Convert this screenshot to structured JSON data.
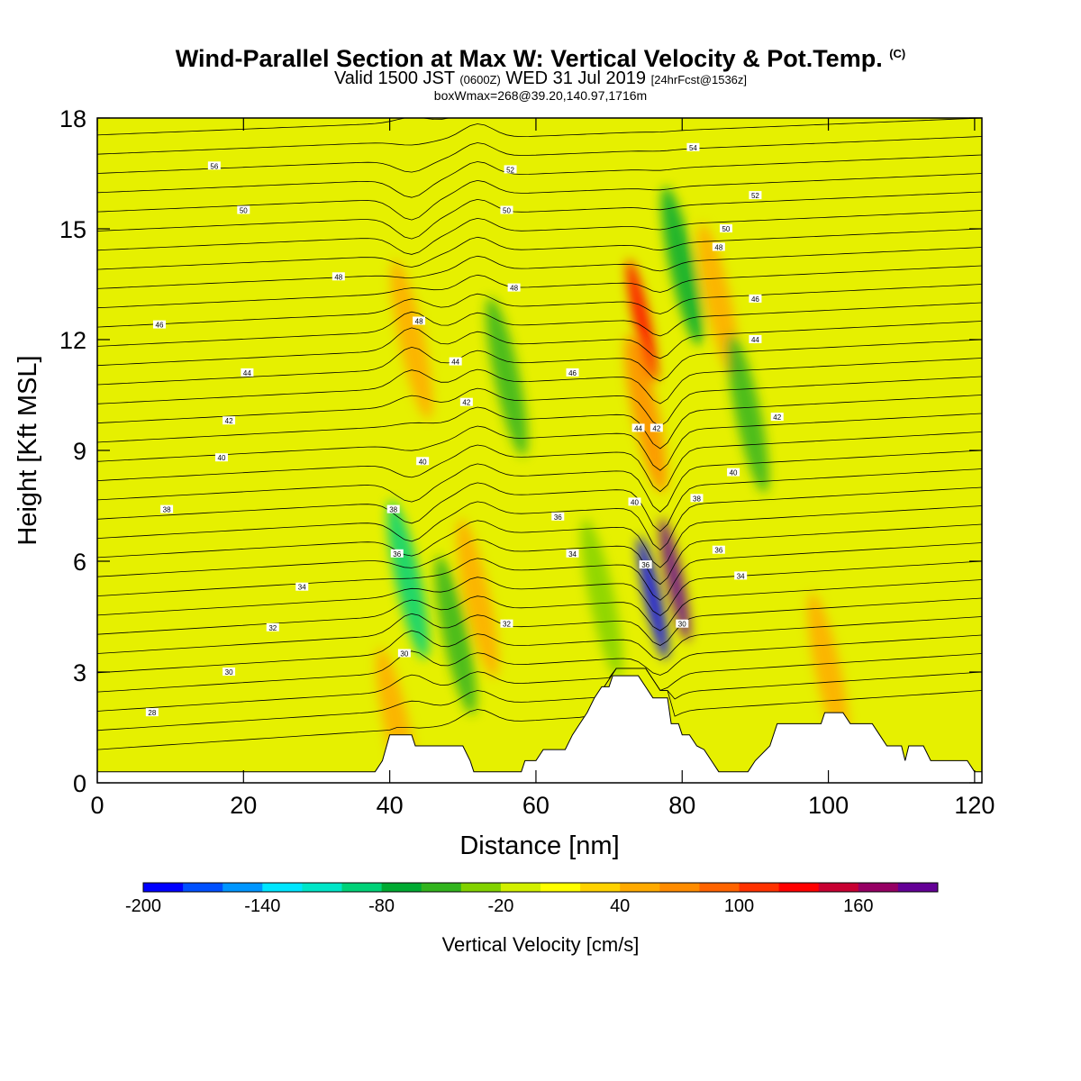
{
  "header": {
    "title": "Wind-Parallel Section at Max W: Vertical Velocity & Pot.Temp.",
    "title_tag": "(C)",
    "subtitle_pre": "Valid 1500 JST",
    "subtitle_utc": "(0600Z)",
    "subtitle_date": "WED 31 Jul 2019",
    "subtitle_fcst": "[24hrFcst@1536z]",
    "subtitle2": "boxWmax=268@39.20,140.97,1716m"
  },
  "chart_data": {
    "type": "contour",
    "xlabel": "Distance [nm]",
    "ylabel": "Height [Kft MSL]",
    "xlim": [
      0,
      121
    ],
    "ylim": [
      0,
      18
    ],
    "xticks": [
      0,
      20,
      40,
      60,
      80,
      100,
      120
    ],
    "yticks": [
      0,
      3,
      6,
      9,
      12,
      15,
      18
    ],
    "terrain_kft": [
      [
        0,
        0.3
      ],
      [
        38,
        0.3
      ],
      [
        39,
        0.6
      ],
      [
        40,
        1.3
      ],
      [
        43,
        1.3
      ],
      [
        43.5,
        1.0
      ],
      [
        47,
        1.0
      ],
      [
        50,
        1.0
      ],
      [
        51,
        0.6
      ],
      [
        51.5,
        0.3
      ],
      [
        58,
        0.3
      ],
      [
        58.5,
        0.6
      ],
      [
        60,
        0.6
      ],
      [
        61,
        0.9
      ],
      [
        64,
        0.9
      ],
      [
        65,
        1.3
      ],
      [
        66,
        1.6
      ],
      [
        67,
        1.9
      ],
      [
        68,
        2.3
      ],
      [
        69,
        2.6
      ],
      [
        70,
        2.6
      ],
      [
        70.5,
        2.9
      ],
      [
        74,
        2.9
      ],
      [
        75,
        2.6
      ],
      [
        76,
        2.3
      ],
      [
        78,
        2.3
      ],
      [
        78.5,
        1.6
      ],
      [
        79.5,
        1.6
      ],
      [
        80,
        1.3
      ],
      [
        81,
        1.3
      ],
      [
        82,
        1.0
      ],
      [
        83,
        0.9
      ],
      [
        84,
        0.6
      ],
      [
        85,
        0.3
      ],
      [
        89,
        0.3
      ],
      [
        90,
        0.6
      ],
      [
        92,
        1.0
      ],
      [
        93,
        1.6
      ],
      [
        99,
        1.6
      ],
      [
        99.5,
        1.9
      ],
      [
        102,
        1.9
      ],
      [
        103,
        1.6
      ],
      [
        106,
        1.6
      ],
      [
        107,
        1.3
      ],
      [
        108,
        1.0
      ],
      [
        110,
        1.0
      ],
      [
        110.5,
        0.6
      ],
      [
        111,
        1.0
      ],
      [
        113,
        1.0
      ],
      [
        114,
        0.6
      ],
      [
        119,
        0.6
      ],
      [
        120,
        0.3
      ],
      [
        121,
        0.3
      ]
    ],
    "w_features": [
      {
        "x": 41,
        "y": 1.5,
        "w": 50
      },
      {
        "x": 42.5,
        "y": 5.5,
        "w": -90
      },
      {
        "x": 43,
        "y": 12,
        "w": 40
      },
      {
        "x": 49,
        "y": 4,
        "w": -60
      },
      {
        "x": 52,
        "y": 5,
        "w": 40
      },
      {
        "x": 56,
        "y": 11,
        "w": -60
      },
      {
        "x": 69,
        "y": 5,
        "w": -40
      },
      {
        "x": 75,
        "y": 10,
        "w": 60
      },
      {
        "x": 74.5,
        "y": 12.5,
        "w": 120
      },
      {
        "x": 76,
        "y": 5,
        "w": -200
      },
      {
        "x": 79,
        "y": 5.5,
        "w": 180
      },
      {
        "x": 80,
        "y": 14,
        "w": -80
      },
      {
        "x": 85,
        "y": 13,
        "w": 40
      },
      {
        "x": 89,
        "y": 10,
        "w": -60
      },
      {
        "x": 100,
        "y": 3,
        "w": 40
      }
    ],
    "contour_labels": [
      {
        "x": 16,
        "y": 16.7,
        "t": "56"
      },
      {
        "x": 20,
        "y": 15.5,
        "t": "50"
      },
      {
        "x": 33,
        "y": 13.7,
        "t": "48"
      },
      {
        "x": 8.5,
        "y": 12.4,
        "t": "46"
      },
      {
        "x": 20.5,
        "y": 11.1,
        "t": "44"
      },
      {
        "x": 18,
        "y": 9.8,
        "t": "42"
      },
      {
        "x": 17,
        "y": 8.8,
        "t": "40"
      },
      {
        "x": 9.5,
        "y": 7.4,
        "t": "38"
      },
      {
        "x": 28,
        "y": 5.3,
        "t": "34"
      },
      {
        "x": 24,
        "y": 4.2,
        "t": "32"
      },
      {
        "x": 18,
        "y": 3.0,
        "t": "30"
      },
      {
        "x": 7.5,
        "y": 1.9,
        "t": "28"
      },
      {
        "x": 56.5,
        "y": 16.6,
        "t": "52"
      },
      {
        "x": 56,
        "y": 15.5,
        "t": "50"
      },
      {
        "x": 57,
        "y": 13.4,
        "t": "48"
      },
      {
        "x": 65,
        "y": 11.1,
        "t": "46"
      },
      {
        "x": 49,
        "y": 11.4,
        "t": "44"
      },
      {
        "x": 50.5,
        "y": 10.3,
        "t": "42"
      },
      {
        "x": 44,
        "y": 12.5,
        "t": "48"
      },
      {
        "x": 44.5,
        "y": 8.7,
        "t": "40"
      },
      {
        "x": 40.5,
        "y": 7.4,
        "t": "38"
      },
      {
        "x": 41,
        "y": 6.2,
        "t": "36"
      },
      {
        "x": 42,
        "y": 3.5,
        "t": "30"
      },
      {
        "x": 63,
        "y": 7.2,
        "t": "36"
      },
      {
        "x": 65,
        "y": 6.2,
        "t": "34"
      },
      {
        "x": 56,
        "y": 4.3,
        "t": "32"
      },
      {
        "x": 81.5,
        "y": 17.2,
        "t": "54"
      },
      {
        "x": 90,
        "y": 15.9,
        "t": "52"
      },
      {
        "x": 86,
        "y": 15.0,
        "t": "50"
      },
      {
        "x": 85,
        "y": 14.5,
        "t": "48"
      },
      {
        "x": 90,
        "y": 13.1,
        "t": "46"
      },
      {
        "x": 90,
        "y": 12.0,
        "t": "44"
      },
      {
        "x": 93,
        "y": 9.9,
        "t": "42"
      },
      {
        "x": 87,
        "y": 8.4,
        "t": "40"
      },
      {
        "x": 82,
        "y": 7.7,
        "t": "38"
      },
      {
        "x": 85,
        "y": 6.3,
        "t": "36"
      },
      {
        "x": 88,
        "y": 5.6,
        "t": "34"
      },
      {
        "x": 74,
        "y": 9.6,
        "t": "44"
      },
      {
        "x": 76.5,
        "y": 9.6,
        "t": "42"
      },
      {
        "x": 73.5,
        "y": 7.6,
        "t": "40"
      },
      {
        "x": 75,
        "y": 5.9,
        "t": "36"
      },
      {
        "x": 80,
        "y": 4.3,
        "t": "30"
      }
    ],
    "colorbar": {
      "label": "Vertical Velocity [cm/s]",
      "tick_labels": [
        "-200",
        "-140",
        "-80",
        "-20",
        "40",
        "100",
        "160"
      ],
      "colors": [
        "#0000ff",
        "#0050ff",
        "#0096ff",
        "#00e6ff",
        "#00e6c8",
        "#00d278",
        "#00aa32",
        "#32b41e",
        "#82d200",
        "#d2f000",
        "#ffff00",
        "#ffd200",
        "#ffaa00",
        "#ff8c00",
        "#ff6400",
        "#ff3200",
        "#ff0000",
        "#c80032",
        "#960064",
        "#640096"
      ]
    }
  }
}
